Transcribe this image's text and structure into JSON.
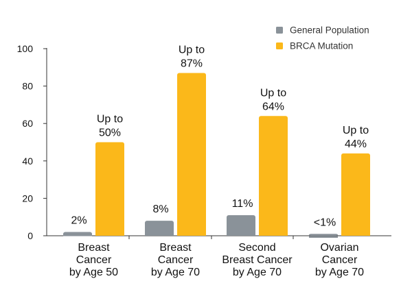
{
  "chart_data": {
    "type": "bar",
    "title": "",
    "xlabel": "",
    "ylabel": "",
    "ylim": [
      0,
      100
    ],
    "yticks": [
      0,
      20,
      40,
      60,
      80,
      100
    ],
    "grid": false,
    "legend_position": "top-right",
    "categories": [
      [
        "Breast",
        "Cancer",
        "by Age 50"
      ],
      [
        "Breast",
        "Cancer",
        "by Age 70"
      ],
      [
        "Second",
        "Breast Cancer",
        "by Age 70"
      ],
      [
        "Ovarian",
        "Cancer",
        "by Age 70"
      ]
    ],
    "series": [
      {
        "name": "General Population",
        "color": "#8a9299",
        "values": [
          2,
          8,
          11,
          1
        ],
        "labels": [
          [
            "2%"
          ],
          [
            "8%"
          ],
          [
            "11%"
          ],
          [
            "<1%"
          ]
        ]
      },
      {
        "name": "BRCA Mutation",
        "color": "#fbb81a",
        "values": [
          50,
          87,
          64,
          44
        ],
        "labels": [
          [
            "Up to",
            "50%"
          ],
          [
            "Up to",
            "87%"
          ],
          [
            "Up to",
            "64%"
          ],
          [
            "Up to",
            "44%"
          ]
        ]
      }
    ]
  }
}
